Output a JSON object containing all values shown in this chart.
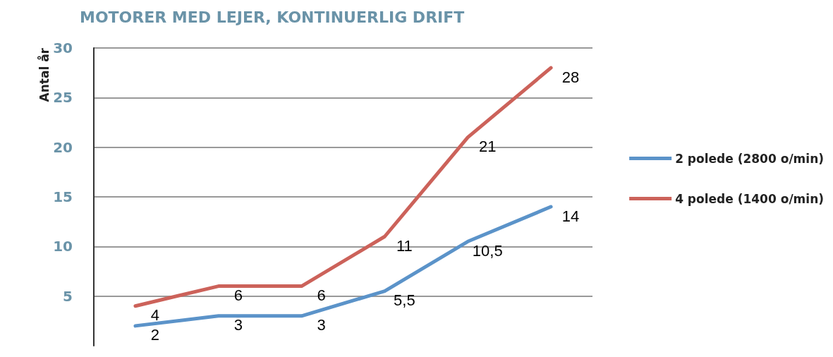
{
  "chart_data": {
    "type": "line",
    "title": "MOTORER MED LEJER, KONTINUERLIG DRIFT",
    "ylabel": "Antal år",
    "categories": [
      null,
      null,
      null,
      null,
      null,
      null
    ],
    "series": [
      {
        "name": "2 polede (2800 o/min)",
        "color": "#5b93c9",
        "values": [
          2,
          3,
          3,
          5.5,
          10.5,
          14
        ],
        "value_labels": [
          "2",
          "3",
          "3",
          "5,5",
          "10,5",
          "14"
        ]
      },
      {
        "name": "4 polede (1400 o/min)",
        "color": "#cc625a",
        "values": [
          4,
          6,
          6,
          11,
          21,
          28
        ],
        "value_labels": [
          "4",
          "6",
          "6",
          "11",
          "21",
          "28"
        ]
      }
    ],
    "ylim": [
      0,
      30
    ],
    "yticks": [
      5,
      10,
      15,
      20,
      25,
      30
    ],
    "grid": "y",
    "legend": "right",
    "marker": "none",
    "line_style": "solid"
  }
}
